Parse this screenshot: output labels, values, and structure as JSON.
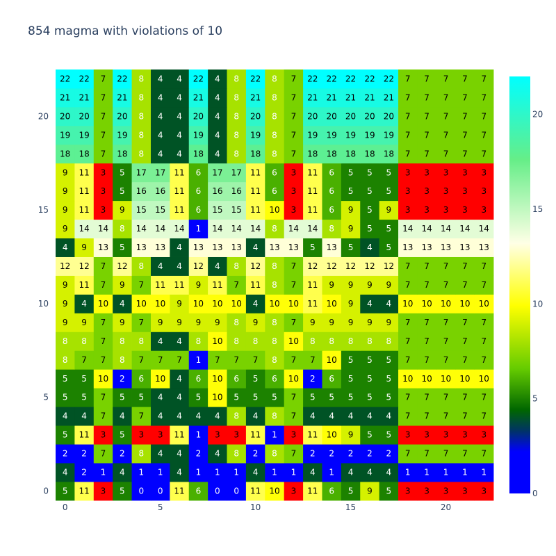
{
  "chart_data": {
    "type": "heatmap",
    "title": "854 magma with violations of 10",
    "xlabel": "",
    "ylabel": "",
    "x_ticks": [
      0,
      5,
      10,
      15,
      20
    ],
    "y_ticks": [
      0,
      5,
      10,
      15,
      20
    ],
    "colorbar_ticks": [
      0,
      5,
      10,
      15,
      20
    ],
    "zmin": 0,
    "zmax": 22,
    "colorscale": [
      [
        0.0,
        "#0000ff"
      ],
      [
        0.1,
        "#0000ff"
      ],
      [
        0.15,
        "#003366"
      ],
      [
        0.2,
        "#006600"
      ],
      [
        0.3,
        "#66cc00"
      ],
      [
        0.45,
        "#ffff00"
      ],
      [
        0.6,
        "#ffffe6"
      ],
      [
        0.8,
        "#66ee88"
      ],
      [
        1.0,
        "#00ffff"
      ]
    ],
    "violation_value": 3,
    "violation_color": "#ff0000",
    "z": [
      [
        5,
        11,
        3,
        5,
        0,
        0,
        11,
        6,
        0,
        0,
        11,
        10,
        3,
        11,
        6,
        5,
        9,
        5,
        3,
        3,
        3,
        3,
        3
      ],
      [
        4,
        2,
        1,
        4,
        1,
        1,
        4,
        1,
        1,
        1,
        4,
        1,
        1,
        4,
        1,
        4,
        4,
        4,
        1,
        1,
        1,
        1,
        1
      ],
      [
        2,
        2,
        7,
        2,
        8,
        4,
        4,
        2,
        4,
        8,
        2,
        8,
        7,
        2,
        2,
        2,
        2,
        2,
        7,
        7,
        7,
        7,
        7
      ],
      [
        5,
        11,
        3,
        5,
        3,
        3,
        11,
        1,
        3,
        3,
        11,
        1,
        3,
        11,
        10,
        9,
        5,
        5,
        3,
        3,
        3,
        3,
        3
      ],
      [
        4,
        4,
        7,
        4,
        7,
        4,
        4,
        4,
        4,
        8,
        4,
        8,
        7,
        4,
        4,
        4,
        4,
        4,
        7,
        7,
        7,
        7,
        7
      ],
      [
        5,
        5,
        7,
        5,
        5,
        4,
        4,
        5,
        10,
        5,
        5,
        5,
        7,
        5,
        5,
        5,
        5,
        5,
        7,
        7,
        7,
        7,
        7
      ],
      [
        5,
        5,
        10,
        2,
        6,
        10,
        4,
        6,
        10,
        6,
        5,
        6,
        10,
        2,
        6,
        5,
        5,
        5,
        10,
        10,
        10,
        10,
        10
      ],
      [
        8,
        7,
        7,
        8,
        7,
        7,
        7,
        1,
        7,
        7,
        7,
        8,
        7,
        7,
        10,
        5,
        5,
        5,
        7,
        7,
        7,
        7,
        7
      ],
      [
        8,
        8,
        7,
        8,
        8,
        4,
        4,
        8,
        10,
        8,
        8,
        8,
        10,
        8,
        8,
        8,
        8,
        8,
        7,
        7,
        7,
        7,
        7
      ],
      [
        9,
        9,
        7,
        9,
        7,
        9,
        9,
        9,
        9,
        8,
        9,
        8,
        7,
        9,
        9,
        9,
        9,
        9,
        7,
        7,
        7,
        7,
        7
      ],
      [
        9,
        4,
        10,
        4,
        10,
        10,
        9,
        10,
        10,
        10,
        4,
        10,
        10,
        11,
        10,
        9,
        4,
        4,
        10,
        10,
        10,
        10,
        10
      ],
      [
        9,
        11,
        7,
        9,
        7,
        11,
        11,
        9,
        11,
        7,
        11,
        8,
        7,
        11,
        9,
        9,
        9,
        9,
        7,
        7,
        7,
        7,
        7
      ],
      [
        12,
        12,
        7,
        12,
        8,
        4,
        4,
        12,
        4,
        8,
        12,
        8,
        7,
        12,
        12,
        12,
        12,
        12,
        7,
        7,
        7,
        7,
        7
      ],
      [
        4,
        9,
        13,
        5,
        13,
        13,
        4,
        13,
        13,
        13,
        4,
        13,
        13,
        5,
        13,
        5,
        4,
        5,
        13,
        13,
        13,
        13,
        13
      ],
      [
        9,
        14,
        14,
        8,
        14,
        14,
        14,
        1,
        14,
        14,
        14,
        8,
        14,
        14,
        8,
        9,
        5,
        5,
        14,
        14,
        14,
        14,
        14
      ],
      [
        9,
        11,
        3,
        9,
        15,
        15,
        11,
        6,
        15,
        15,
        11,
        10,
        3,
        11,
        6,
        9,
        5,
        9,
        3,
        3,
        3,
        3,
        3
      ],
      [
        9,
        11,
        3,
        5,
        16,
        16,
        11,
        6,
        16,
        16,
        11,
        6,
        3,
        11,
        6,
        5,
        5,
        5,
        3,
        3,
        3,
        3,
        3
      ],
      [
        9,
        11,
        3,
        5,
        17,
        17,
        11,
        6,
        17,
        17,
        11,
        6,
        3,
        11,
        6,
        5,
        5,
        5,
        3,
        3,
        3,
        3,
        3
      ],
      [
        18,
        18,
        7,
        18,
        8,
        4,
        4,
        18,
        4,
        8,
        18,
        8,
        7,
        18,
        18,
        18,
        18,
        18,
        7,
        7,
        7,
        7,
        7
      ],
      [
        19,
        19,
        7,
        19,
        8,
        4,
        4,
        19,
        4,
        8,
        19,
        8,
        7,
        19,
        19,
        19,
        19,
        19,
        7,
        7,
        7,
        7,
        7
      ],
      [
        20,
        20,
        7,
        20,
        8,
        4,
        4,
        20,
        4,
        8,
        20,
        8,
        7,
        20,
        20,
        20,
        20,
        20,
        7,
        7,
        7,
        7,
        7
      ],
      [
        21,
        21,
        7,
        21,
        8,
        4,
        4,
        21,
        4,
        8,
        21,
        8,
        7,
        21,
        21,
        21,
        21,
        21,
        7,
        7,
        7,
        7,
        7
      ],
      [
        22,
        22,
        7,
        22,
        8,
        4,
        4,
        22,
        4,
        8,
        22,
        8,
        7,
        22,
        22,
        22,
        22,
        22,
        7,
        7,
        7,
        7,
        7
      ]
    ]
  }
}
